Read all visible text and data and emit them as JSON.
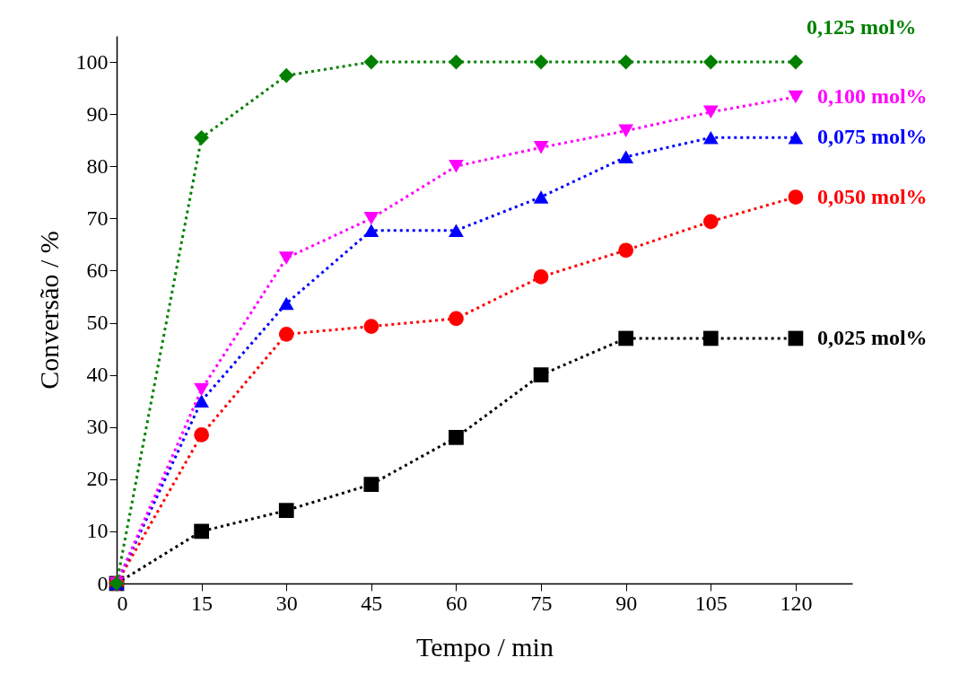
{
  "chart_data": {
    "type": "line",
    "xlabel": "Tempo / min",
    "ylabel": "Conversão / %",
    "x": [
      0,
      15,
      30,
      45,
      60,
      75,
      90,
      105,
      120
    ],
    "series": [
      {
        "name": "0,025 mol%",
        "color": "#000000",
        "marker": "square",
        "values": [
          0,
          10,
          14,
          19,
          28,
          40,
          47,
          47,
          47
        ]
      },
      {
        "name": "0,050 mol%",
        "color": "#ff0000",
        "marker": "circle",
        "values": [
          0,
          28.5,
          47.8,
          49.3,
          50.8,
          58.8,
          63.9,
          69.4,
          74.1
        ]
      },
      {
        "name": "0,075 mol%",
        "color": "#0000ff",
        "marker": "triangle",
        "values": [
          0,
          35,
          53.7,
          67.7,
          67.7,
          74.1,
          81.8,
          85.5,
          85.5
        ]
      },
      {
        "name": "0,100 mol%",
        "color": "#ff00ff",
        "marker": "triangle-down",
        "values": [
          0,
          37.2,
          62.4,
          70,
          80,
          83.6,
          86.8,
          90.4,
          93.3
        ]
      },
      {
        "name": "0,125 mol%",
        "color": "#008000",
        "marker": "diamond",
        "values": [
          0,
          85.5,
          97.4,
          100,
          100,
          100,
          100,
          100,
          100
        ]
      }
    ],
    "xlim": [
      0,
      130
    ],
    "xticks": [
      0,
      15,
      30,
      45,
      60,
      75,
      90,
      105,
      120
    ],
    "ylim": [
      0,
      105
    ],
    "yticks": [
      0,
      10,
      20,
      30,
      40,
      50,
      60,
      70,
      80,
      90,
      100
    ],
    "grid": false,
    "legend": false,
    "line_style": "dotted"
  }
}
